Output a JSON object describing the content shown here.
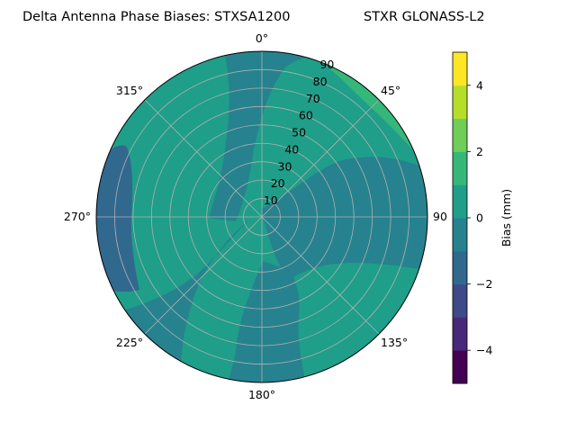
{
  "chart_data": {
    "type": "heatmap",
    "projection": "polar",
    "title": "Delta Antenna Phase Biases: STXSA1200",
    "title_right": "STXR GLONASS-L2",
    "angular_ticks": [
      {
        "label": "0°",
        "deg": 0
      },
      {
        "label": "45°",
        "deg": 45
      },
      {
        "label": "90",
        "deg": 90
      },
      {
        "label": "135°",
        "deg": 135
      },
      {
        "label": "180°",
        "deg": 180
      },
      {
        "label": "225°",
        "deg": 225
      },
      {
        "label": "270°",
        "deg": 270
      },
      {
        "label": "315°",
        "deg": 315
      }
    ],
    "radial_ticks": [
      "10",
      "20",
      "30",
      "40",
      "50",
      "60",
      "70",
      "80",
      "90"
    ],
    "radial_range": [
      0,
      90
    ],
    "grid": true,
    "colorbar": {
      "label": "Bias (mm)",
      "range": [
        -5,
        5
      ],
      "ticks": [
        "−4",
        "−2",
        "0",
        "2",
        "4"
      ],
      "tick_values": [
        -4,
        -2,
        0,
        2,
        4
      ],
      "colors": [
        "#440154",
        "#482878",
        "#3e4989",
        "#31688e",
        "#26828e",
        "#1f9e89",
        "#35b779",
        "#6ece58",
        "#b5de2b",
        "#fde725"
      ]
    },
    "regions": [
      {
        "name": "background",
        "bias_range": [
          0,
          1
        ],
        "color": "#1f9e89"
      },
      {
        "name": "north-band",
        "bias_range": [
          -1,
          0
        ],
        "color": "#26828e"
      },
      {
        "name": "east-band",
        "bias_range": [
          -1,
          0
        ],
        "color": "#26828e"
      },
      {
        "name": "southwest-band",
        "bias_range": [
          -1,
          0
        ],
        "color": "#26828e"
      },
      {
        "name": "south-band",
        "bias_range": [
          -1,
          0
        ],
        "color": "#26828e"
      },
      {
        "name": "west-low",
        "bias_range": [
          -2,
          -1
        ],
        "color": "#31688e"
      },
      {
        "name": "northeast-high",
        "bias_range": [
          1,
          2
        ],
        "color": "#35b779"
      }
    ]
  }
}
